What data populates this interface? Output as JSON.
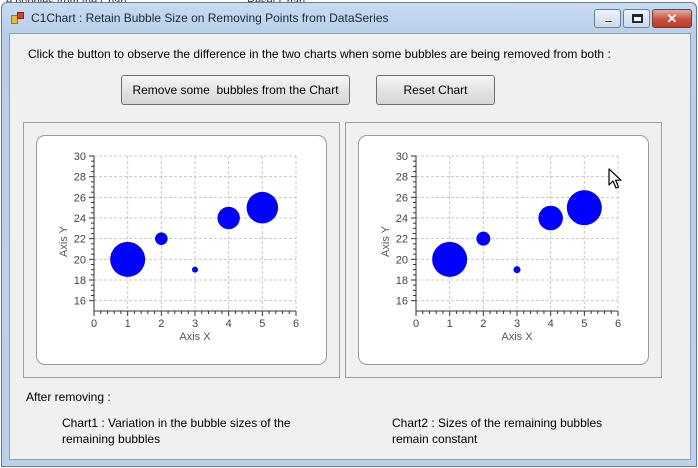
{
  "background": {
    "fragment_left": "e bubbles from the Chart",
    "fragment_right": "Reset Chart"
  },
  "window": {
    "title": "C1Chart : Retain Bubble Size on Removing Points from DataSeries",
    "controls": {
      "minimize": "minimize-icon",
      "maximize": "maximize-icon",
      "close": "close-icon",
      "close_glyph": "✕"
    }
  },
  "instruction": "Click the button to observe the difference in the two charts when some bubbles are being removed from both :",
  "buttons": {
    "remove": "Remove some  bubbles from the Chart",
    "reset": "Reset Chart"
  },
  "after_label": "After removing :",
  "notes": {
    "chart1": "Chart1 : Variation in the bubble sizes of the remaining bubbles",
    "chart2": "Chart2 : Sizes of the remaining bubbles remain constant"
  },
  "colors": {
    "bubble": "#0000ff",
    "grid": "#c8c8c8",
    "axis": "#333333"
  },
  "chart_data": [
    {
      "type": "scatter",
      "title": "",
      "xlabel": "Axis X",
      "ylabel": "Axis Y",
      "xlim": [
        0,
        6
      ],
      "ylim": [
        15,
        30
      ],
      "x_ticks": [
        0,
        1,
        2,
        3,
        4,
        5,
        6
      ],
      "y_ticks": [
        16,
        18,
        20,
        22,
        24,
        26,
        28,
        30
      ],
      "grid": true,
      "points": [
        {
          "x": 1,
          "y": 20,
          "size": 5
        },
        {
          "x": 2,
          "y": 22,
          "size": 1.8
        },
        {
          "x": 3,
          "y": 19,
          "size": 0.8
        },
        {
          "x": 4,
          "y": 24,
          "size": 3.2
        },
        {
          "x": 5,
          "y": 25,
          "size": 4.5
        }
      ]
    },
    {
      "type": "scatter",
      "title": "",
      "xlabel": "Axis X",
      "ylabel": "Axis Y",
      "xlim": [
        0,
        6
      ],
      "ylim": [
        15,
        30
      ],
      "x_ticks": [
        0,
        1,
        2,
        3,
        4,
        5,
        6
      ],
      "y_ticks": [
        16,
        18,
        20,
        22,
        24,
        26,
        28,
        30
      ],
      "grid": true,
      "points": [
        {
          "x": 1,
          "y": 20,
          "size": 5
        },
        {
          "x": 2,
          "y": 22,
          "size": 2
        },
        {
          "x": 3,
          "y": 19,
          "size": 1
        },
        {
          "x": 4,
          "y": 24,
          "size": 3.5
        },
        {
          "x": 5,
          "y": 25,
          "size": 5
        }
      ]
    }
  ]
}
